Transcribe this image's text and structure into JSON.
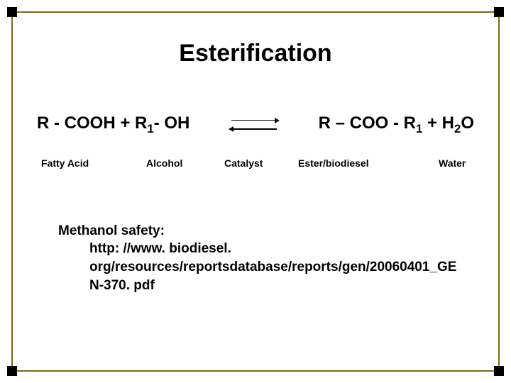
{
  "title": "Esterification",
  "reaction": {
    "left_r": "R - COOH + R",
    "left_sub1": "1",
    "left_tail": "- OH",
    "right_r": "R – COO - R",
    "right_sub1": "1",
    "right_mid": " + H",
    "right_sub2": "2",
    "right_tail": "O"
  },
  "labels": {
    "fatty_acid": "Fatty Acid",
    "alcohol": "Alcohol",
    "catalyst": "Catalyst",
    "ester": "Ester/biodiesel",
    "water": "Water"
  },
  "safety": {
    "heading": "Methanol safety:",
    "url": "http: //www. biodiesel. org/resources/reportsdatabase/reports/gen/20060401_GEN-370. pdf"
  },
  "colors": {
    "frame_border": "#7a6a1a",
    "corner": "#000000",
    "text": "#000000",
    "background": "#ffffff"
  },
  "typography": {
    "title_size": 34,
    "reaction_size": 24,
    "label_size": 14,
    "safety_size": 19,
    "font_family": "Verdana"
  }
}
